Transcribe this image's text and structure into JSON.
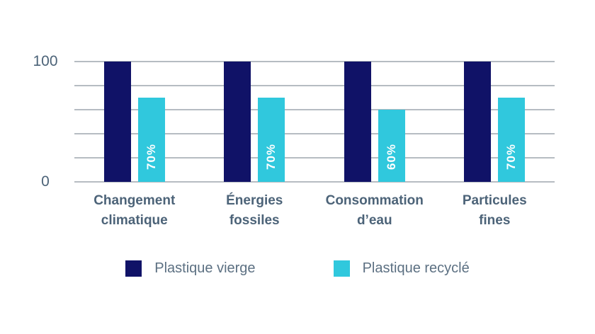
{
  "chart_data": {
    "type": "bar",
    "title": "",
    "xlabel": "",
    "ylabel": "",
    "ylim": [
      0,
      100
    ],
    "grid": "horizontal",
    "gridline_values": [
      100,
      80,
      60,
      40,
      20,
      0
    ],
    "yticks": [
      {
        "value": 100,
        "label": "100"
      },
      {
        "value": 0,
        "label": "0"
      }
    ],
    "categories": [
      {
        "name": "Changement climatique",
        "lines": [
          "Changement",
          "climatique"
        ]
      },
      {
        "name": "Énergies fossiles",
        "lines": [
          "Énergies",
          "fossiles"
        ]
      },
      {
        "name": "Consommation d’eau",
        "lines": [
          "Consommation",
          "d’eau"
        ]
      },
      {
        "name": "Particules fines",
        "lines": [
          "Particules",
          "fines"
        ]
      }
    ],
    "series": [
      {
        "name": "Plastique vierge",
        "color": "#101267",
        "values": [
          100,
          100,
          100,
          100
        ],
        "bar_labels": [
          "",
          "",
          "",
          ""
        ]
      },
      {
        "name": "Plastique recyclé",
        "color": "#30c8dd",
        "values": [
          70,
          70,
          60,
          70
        ],
        "bar_labels": [
          "70%",
          "70%",
          "60%",
          "70%"
        ]
      }
    ],
    "bar_label_color": "#ffffff",
    "legend_position": "bottom"
  },
  "legend": {
    "items": [
      {
        "label": "Plastique vierge",
        "color": "#101267"
      },
      {
        "label": "Plastique recyclé",
        "color": "#30c8dd"
      }
    ]
  },
  "colors": {
    "series_navy": "#101267",
    "series_cyan": "#30c8dd",
    "category_text": "#4c6378",
    "tick_text": "#4c6378",
    "legend_text": "#5c7082",
    "gridline": "#b6bcc2",
    "background": "#ffffff"
  }
}
